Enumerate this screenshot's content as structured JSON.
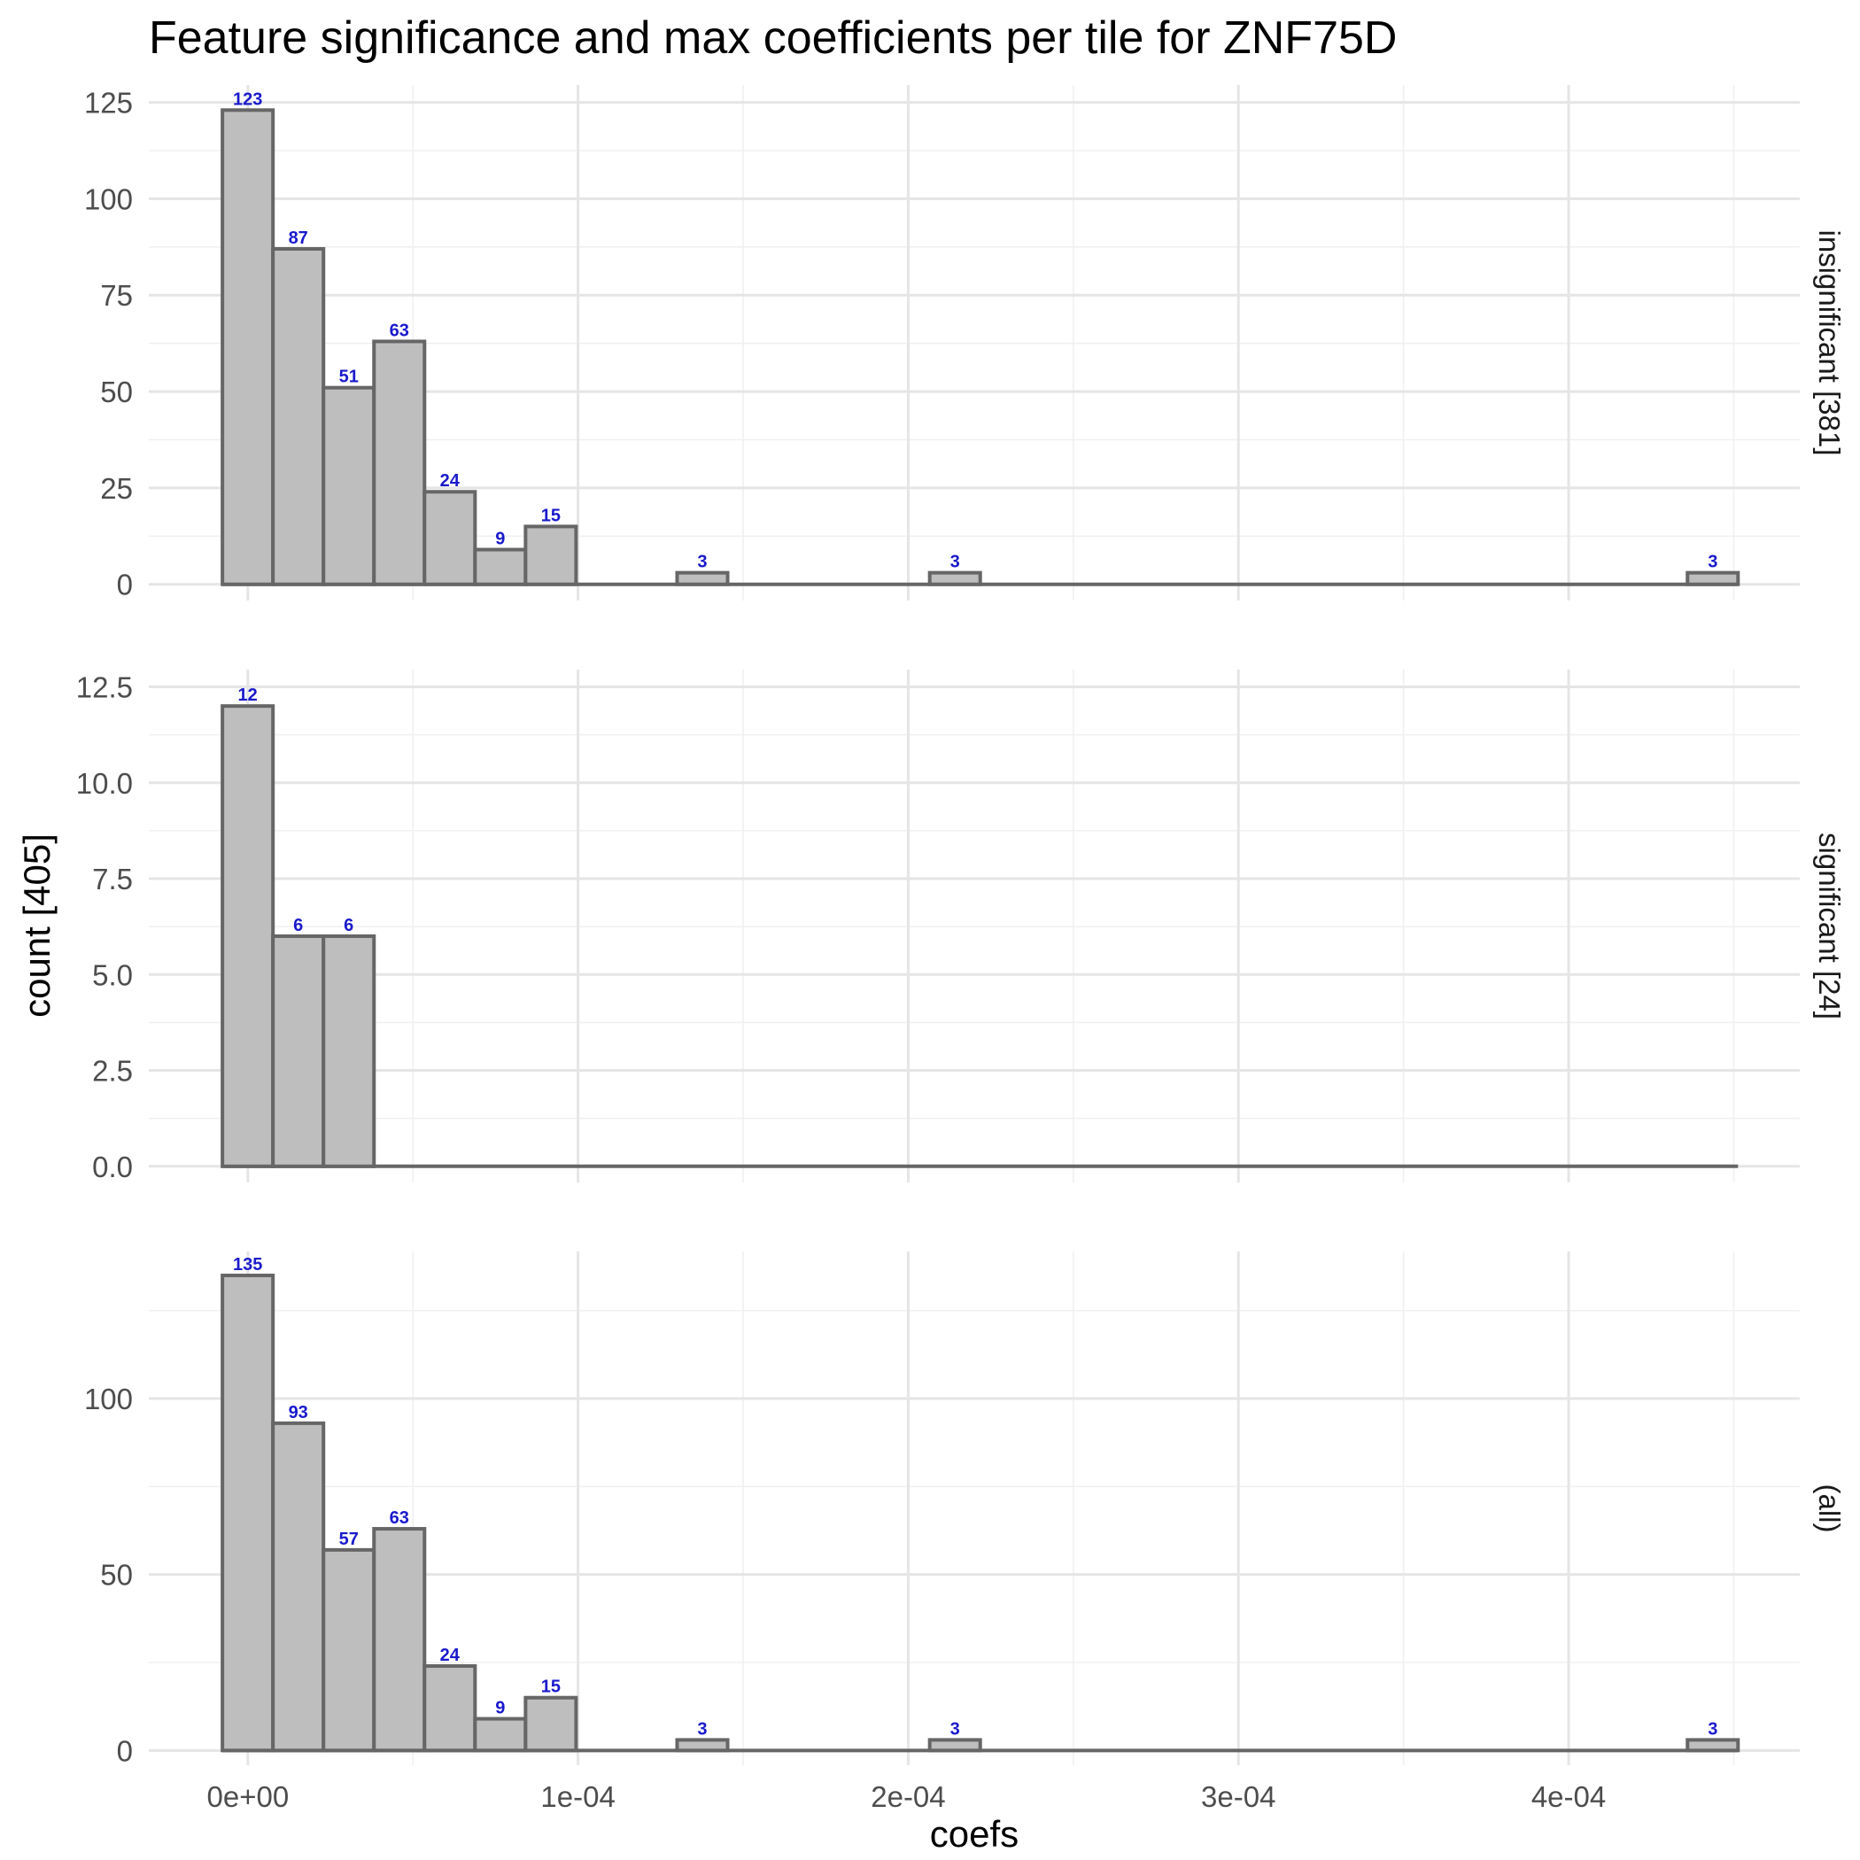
{
  "chart_data": {
    "type": "bar",
    "title": "Feature significance and max coefficients per tile for ZNF75D",
    "xlabel": "coefs",
    "ylabel": "count [405]",
    "xlim": [
      -3e-05,
      0.00047
    ],
    "x_ticks": [
      0,
      0.0001,
      0.0002,
      0.0003,
      0.0004
    ],
    "x_tick_labels": [
      "0e+00",
      "1e-04",
      "2e-04",
      "3e-04",
      "4e-04"
    ],
    "bin_width": 1.53e-05,
    "bin_start": -7.7e-06,
    "num_bins": 30,
    "grid": true,
    "label_color": "#1a1acc",
    "bar_fill": "#bebebe",
    "bar_outline": "#666666",
    "panels": [
      {
        "strip_label": "insignificant [381]",
        "ylim": [
          -4.2,
          129.5
        ],
        "y_ticks": [
          0,
          25,
          50,
          75,
          100,
          125
        ],
        "y_tick_labels": [
          "0",
          "25",
          "50",
          "75",
          "100",
          "125"
        ],
        "y_minor": [
          12.5,
          37.5,
          62.5,
          87.5,
          112.5
        ],
        "bins": [
          {
            "bin": 0,
            "count": 123
          },
          {
            "bin": 1,
            "count": 87
          },
          {
            "bin": 2,
            "count": 51
          },
          {
            "bin": 3,
            "count": 63
          },
          {
            "bin": 4,
            "count": 24
          },
          {
            "bin": 5,
            "count": 9
          },
          {
            "bin": 6,
            "count": 15
          },
          {
            "bin": 9,
            "count": 3
          },
          {
            "bin": 14,
            "count": 3
          },
          {
            "bin": 29,
            "count": 3
          }
        ]
      },
      {
        "strip_label": "significant [24]",
        "ylim": [
          -0.42,
          12.95
        ],
        "y_ticks": [
          0,
          2.5,
          5,
          7.5,
          10,
          12.5
        ],
        "y_tick_labels": [
          "0.0",
          "2.5",
          "5.0",
          "7.5",
          "10.0",
          "12.5"
        ],
        "y_minor": [
          1.25,
          3.75,
          6.25,
          8.75,
          11.25
        ],
        "bins": [
          {
            "bin": 0,
            "count": 12
          },
          {
            "bin": 1,
            "count": 6
          },
          {
            "bin": 2,
            "count": 6
          }
        ]
      },
      {
        "strip_label": "(all)",
        "ylim": [
          -4.2,
          141.8
        ],
        "y_ticks": [
          0,
          50,
          100
        ],
        "y_tick_labels": [
          "0",
          "50",
          "100"
        ],
        "y_minor": [
          25,
          75,
          125
        ],
        "bins": [
          {
            "bin": 0,
            "count": 135
          },
          {
            "bin": 1,
            "count": 93
          },
          {
            "bin": 2,
            "count": 57
          },
          {
            "bin": 3,
            "count": 63
          },
          {
            "bin": 4,
            "count": 24
          },
          {
            "bin": 5,
            "count": 9
          },
          {
            "bin": 6,
            "count": 15
          },
          {
            "bin": 9,
            "count": 3
          },
          {
            "bin": 14,
            "count": 3
          },
          {
            "bin": 29,
            "count": 3
          }
        ]
      }
    ]
  }
}
